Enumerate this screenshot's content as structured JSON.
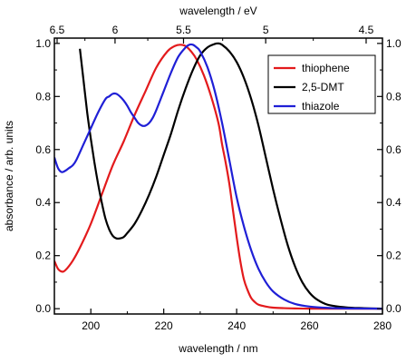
{
  "chart_data": {
    "type": "line",
    "xlabel": "wavelength / nm",
    "ylabel": "absorbance / arb. units",
    "top_xlabel": "wavelength / eV",
    "xlim": [
      190,
      280
    ],
    "ylim": [
      -0.02,
      1.02
    ],
    "x_ticks": [
      200,
      220,
      240,
      260,
      280
    ],
    "y_ticks": [
      0.0,
      0.2,
      0.4,
      0.6,
      0.8,
      1.0
    ],
    "top_ticks": [
      6.5,
      6,
      5.5,
      5,
      4.5
    ],
    "legend_position": "top-right",
    "grid": false,
    "series": [
      {
        "name": "thiophene",
        "color": "#e31a1c",
        "x": [
          190,
          191,
          192,
          193,
          195,
          197,
          200,
          203,
          206,
          209,
          212,
          215,
          218,
          221,
          223,
          224.5,
          226,
          227.5,
          229,
          231,
          233,
          235,
          236,
          237,
          238,
          239,
          240,
          241,
          242,
          243,
          244,
          245,
          246,
          248,
          250,
          253,
          256,
          260,
          270,
          280
        ],
        "y": [
          0.18,
          0.15,
          0.14,
          0.145,
          0.18,
          0.23,
          0.32,
          0.43,
          0.54,
          0.63,
          0.73,
          0.82,
          0.91,
          0.97,
          0.99,
          0.995,
          0.99,
          0.97,
          0.94,
          0.88,
          0.8,
          0.7,
          0.62,
          0.55,
          0.47,
          0.37,
          0.27,
          0.18,
          0.11,
          0.07,
          0.04,
          0.025,
          0.015,
          0.008,
          0.004,
          0.002,
          0.001,
          0.0,
          0.0,
          0.0
        ]
      },
      {
        "name": "2,5-DMT",
        "color": "#000000",
        "x": [
          197,
          198,
          199,
          200,
          201,
          202,
          203,
          204,
          205,
          206,
          207,
          208,
          209,
          210,
          212,
          214,
          216,
          218,
          220,
          222,
          224,
          226,
          228,
          230,
          232,
          234,
          235,
          236,
          238,
          240,
          242,
          244,
          246,
          248,
          250,
          252,
          254,
          256,
          258,
          260,
          262,
          265,
          270,
          275,
          280
        ],
        "y": [
          0.98,
          0.86,
          0.74,
          0.64,
          0.55,
          0.47,
          0.4,
          0.34,
          0.3,
          0.275,
          0.265,
          0.265,
          0.27,
          0.285,
          0.32,
          0.37,
          0.43,
          0.5,
          0.58,
          0.66,
          0.75,
          0.83,
          0.9,
          0.955,
          0.985,
          0.998,
          1.0,
          0.995,
          0.97,
          0.93,
          0.87,
          0.79,
          0.69,
          0.57,
          0.45,
          0.34,
          0.24,
          0.16,
          0.1,
          0.06,
          0.035,
          0.015,
          0.005,
          0.002,
          0.0
        ]
      },
      {
        "name": "thiazole",
        "color": "#1f1fd6",
        "x": [
          190,
          191,
          192,
          193,
          194,
          195,
          196,
          198,
          200,
          202,
          204,
          205,
          206,
          207,
          208,
          209,
          210,
          211,
          212,
          213,
          214,
          215,
          216,
          217,
          218,
          220,
          222,
          224,
          226,
          227,
          228,
          229,
          230,
          232,
          234,
          236,
          238,
          240,
          242,
          244,
          246,
          248,
          250,
          253,
          256,
          260,
          265,
          270,
          280
        ],
        "y": [
          0.57,
          0.53,
          0.515,
          0.52,
          0.53,
          0.54,
          0.56,
          0.62,
          0.68,
          0.74,
          0.79,
          0.8,
          0.81,
          0.81,
          0.8,
          0.785,
          0.765,
          0.74,
          0.72,
          0.7,
          0.69,
          0.69,
          0.7,
          0.72,
          0.75,
          0.82,
          0.89,
          0.95,
          0.985,
          0.995,
          0.995,
          0.985,
          0.97,
          0.91,
          0.82,
          0.7,
          0.56,
          0.42,
          0.31,
          0.22,
          0.15,
          0.1,
          0.065,
          0.035,
          0.018,
          0.008,
          0.003,
          0.001,
          0.0
        ]
      }
    ]
  }
}
